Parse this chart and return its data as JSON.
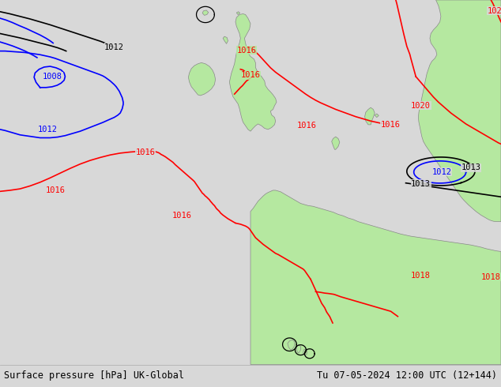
{
  "title_left": "Surface pressure [hPa] UK-Global",
  "title_right": "Tu 07-05-2024 12:00 UTC (12+144)",
  "bg_color": "#d8d8d8",
  "land_color": "#b5e8a0",
  "border_color": "#888888",
  "fig_width": 6.34,
  "fig_height": 4.9,
  "bottom_bar_height": 0.058,
  "font_size_label": 7.5,
  "font_size_title": 8.5
}
